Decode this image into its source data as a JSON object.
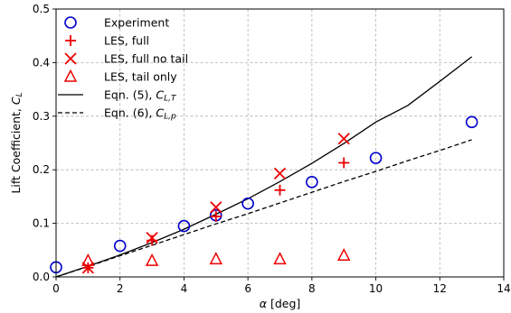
{
  "chart_data": {
    "type": "scatter",
    "xlabel": "α [deg]",
    "ylabel": "Lift Coefficient, C_L",
    "xlim": [
      0,
      14
    ],
    "ylim": [
      0,
      0.5
    ],
    "xticks": [
      0,
      2,
      4,
      6,
      8,
      10,
      12,
      14
    ],
    "yticks": [
      0.0,
      0.1,
      0.2,
      0.3,
      0.4,
      0.5
    ],
    "xtick_labels": [
      "0",
      "2",
      "4",
      "6",
      "8",
      "10",
      "12",
      "14"
    ],
    "ytick_labels": [
      "0.0",
      "0.1",
      "0.2",
      "0.3",
      "0.4",
      "0.5"
    ],
    "grid": true,
    "legend_position": "top-left",
    "series": [
      {
        "name": "Experiment",
        "marker": "circle",
        "color": "#0000cc",
        "x": [
          0,
          2,
          4,
          5,
          6,
          8,
          10,
          13
        ],
        "y": [
          0.018,
          0.058,
          0.095,
          0.115,
          0.137,
          0.177,
          0.222,
          0.289
        ]
      },
      {
        "name": "LES, full",
        "marker": "plus",
        "color": "#ee0000",
        "x": [
          1,
          3,
          5,
          7,
          9
        ],
        "y": [
          0.017,
          0.068,
          0.113,
          0.162,
          0.213
        ]
      },
      {
        "name": "LES, full no tail",
        "marker": "x",
        "color": "#ee0000",
        "x": [
          1,
          3,
          5,
          7,
          9
        ],
        "y": [
          0.017,
          0.073,
          0.13,
          0.193,
          0.258
        ]
      },
      {
        "name": "LES, tail only",
        "marker": "triangle",
        "color": "#ee0000",
        "x": [
          1,
          3,
          5,
          7,
          9
        ],
        "y": [
          0.03,
          0.03,
          0.033,
          0.033,
          0.04
        ]
      },
      {
        "name": "Eqn. (5), C_{L,T}",
        "marker": "line-solid",
        "color": "#000000",
        "x": [
          0,
          1,
          2,
          3,
          4,
          5,
          6,
          7,
          8,
          9,
          10,
          11,
          12,
          13
        ],
        "y": [
          0,
          0.02,
          0.041,
          0.064,
          0.089,
          0.117,
          0.146,
          0.178,
          0.212,
          0.249,
          0.289,
          0.32,
          0.365,
          0.411
        ]
      },
      {
        "name": "Eqn. (6), C_{L,p}",
        "marker": "line-dashed",
        "color": "#000000",
        "x": [
          0,
          1,
          2,
          3,
          4,
          5,
          6,
          7,
          8,
          9,
          10,
          11,
          12,
          13
        ],
        "y": [
          0,
          0.0195,
          0.0395,
          0.059,
          0.079,
          0.099,
          0.118,
          0.138,
          0.158,
          0.178,
          0.197,
          0.217,
          0.236,
          0.256
        ]
      }
    ]
  }
}
